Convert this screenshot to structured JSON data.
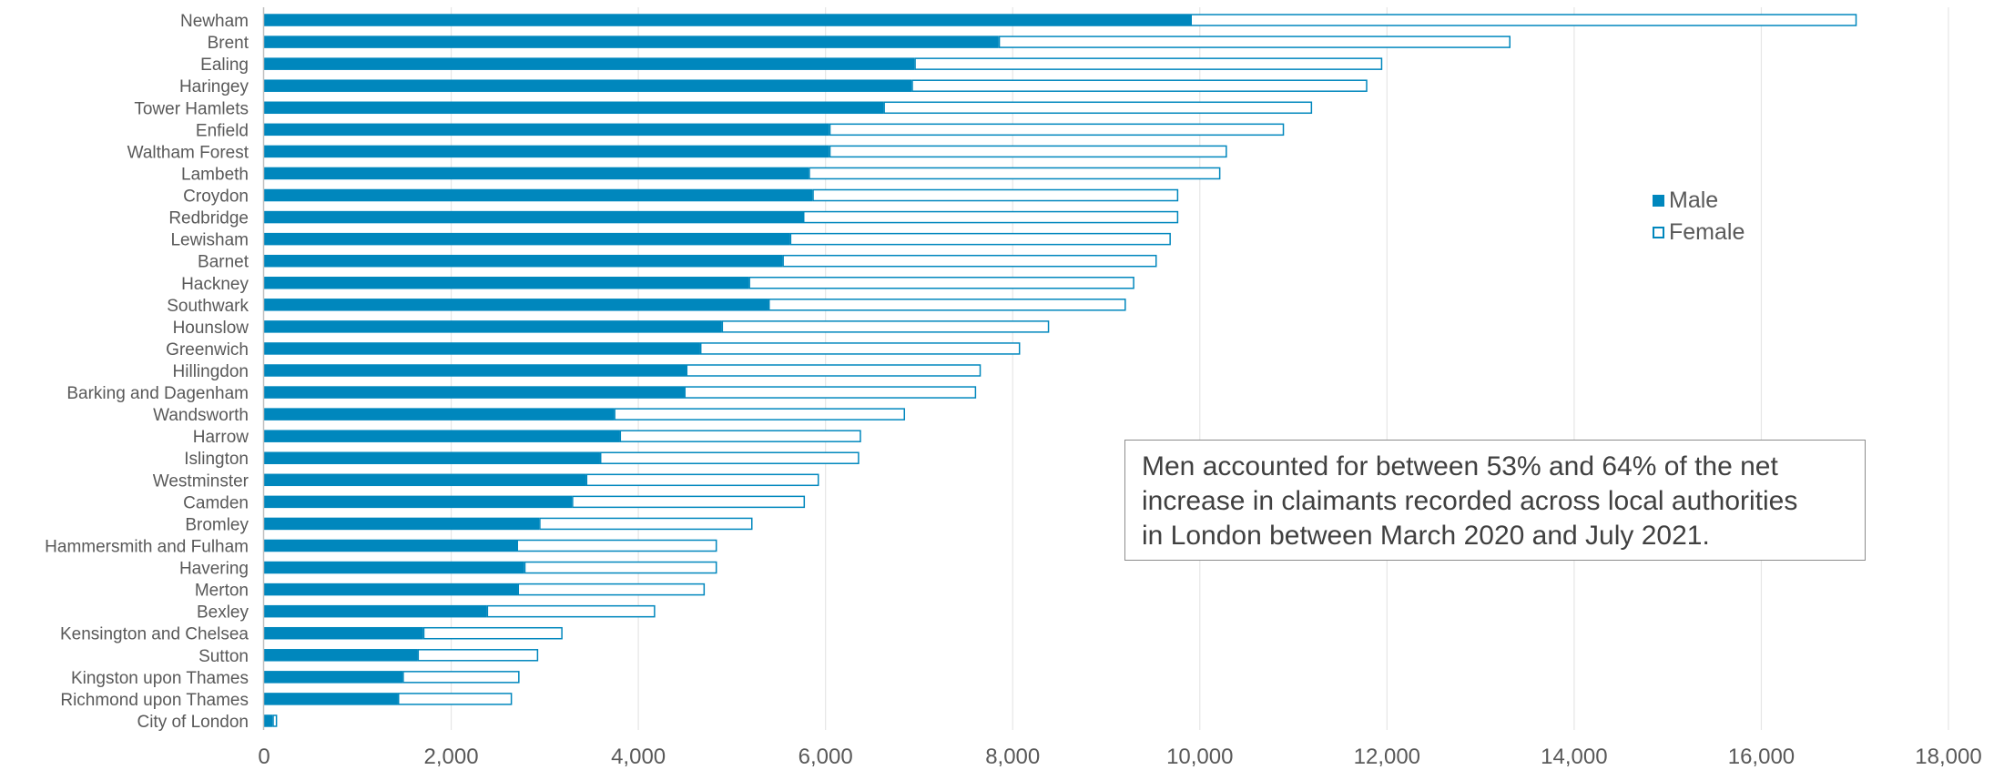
{
  "chart_data": {
    "type": "bar",
    "orientation": "horizontal",
    "stacked": true,
    "categories": [
      "Newham",
      "Brent",
      "Ealing",
      "Haringey",
      "Tower Hamlets",
      "Enfield",
      "Waltham Forest",
      "Lambeth",
      "Croydon",
      "Redbridge",
      "Lewisham",
      "Barnet",
      "Hackney",
      "Southwark",
      "Hounslow",
      "Greenwich",
      "Hillingdon",
      "Barking and Dagenham",
      "Wandsworth",
      "Harrow",
      "Islington",
      "Westminster",
      "Camden",
      "Bromley",
      "Hammersmith and Fulham",
      "Havering",
      "Merton",
      "Bexley",
      "Kensington and Chelsea",
      "Sutton",
      "Kingston upon Thames",
      "Richmond upon Thames",
      "City of London"
    ],
    "series": [
      {
        "name": "Male",
        "color": "#0087bd",
        "fill": "solid",
        "values": [
          9900,
          7850,
          6950,
          6920,
          6620,
          6040,
          6040,
          5820,
          5860,
          5760,
          5620,
          5540,
          5180,
          5390,
          4890,
          4660,
          4510,
          4490,
          3740,
          3800,
          3590,
          3440,
          3290,
          2940,
          2700,
          2780,
          2710,
          2380,
          1700,
          1640,
          1480,
          1430,
          90
        ]
      },
      {
        "name": "Female",
        "color": "#0087bd",
        "fill": "outline",
        "values": [
          7120,
          5470,
          5000,
          4870,
          4580,
          4860,
          4250,
          4400,
          3910,
          4010,
          4070,
          4000,
          4120,
          3820,
          3500,
          3420,
          3150,
          3120,
          3110,
          2580,
          2770,
          2490,
          2490,
          2280,
          2140,
          2060,
          2000,
          1800,
          1490,
          1290,
          1250,
          1220,
          50
        ]
      }
    ],
    "xlim": [
      0,
      18000
    ],
    "x_ticks": [
      0,
      2000,
      4000,
      6000,
      8000,
      10000,
      12000,
      14000,
      16000,
      18000
    ],
    "x_tick_labels": [
      "0",
      "2,000",
      "4,000",
      "6,000",
      "8,000",
      "10,000",
      "12,000",
      "14,000",
      "16,000",
      "18,000"
    ],
    "grid": "vertical",
    "legend_position": "right"
  },
  "legend": {
    "male_label": "Male",
    "female_label": "Female"
  },
  "annotation": {
    "line1": "Men accounted for between 53% and 64% of the net",
    "line2": "increase in claimants recorded across local authorities",
    "line3": "in London between March 2020 and July 2021."
  }
}
